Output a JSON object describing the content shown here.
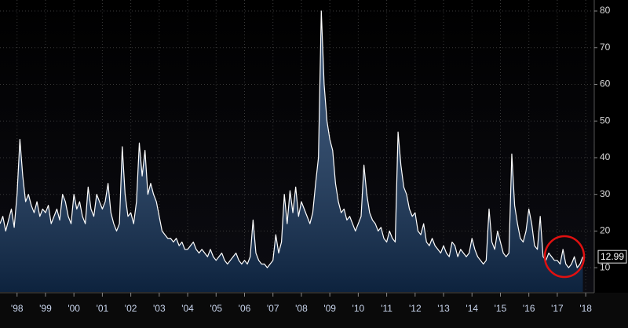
{
  "chart_data": {
    "type": "area",
    "color": "#ffffff",
    "fill_color": "#14355f",
    "grid": true,
    "xlim": [
      1997.4,
      2018.3
    ],
    "ylim": [
      3.4,
      83
    ],
    "yticks": [
      10,
      20,
      30,
      40,
      50,
      60,
      70,
      80
    ],
    "xticks": [
      {
        "value": 1998,
        "label": "'98"
      },
      {
        "value": 1999,
        "label": "'99"
      },
      {
        "value": 2000,
        "label": "'00"
      },
      {
        "value": 2001,
        "label": "'01"
      },
      {
        "value": 2002,
        "label": "'02"
      },
      {
        "value": 2003,
        "label": "'03"
      },
      {
        "value": 2004,
        "label": "'04"
      },
      {
        "value": 2005,
        "label": "'05"
      },
      {
        "value": 2006,
        "label": "'06"
      },
      {
        "value": 2007,
        "label": "'07"
      },
      {
        "value": 2008,
        "label": "'08"
      },
      {
        "value": 2009,
        "label": "'09"
      },
      {
        "value": 2010,
        "label": "'10"
      },
      {
        "value": 2011,
        "label": "'11"
      },
      {
        "value": 2012,
        "label": "'12"
      },
      {
        "value": 2013,
        "label": "'13"
      },
      {
        "value": 2014,
        "label": "'14"
      },
      {
        "value": 2015,
        "label": "'15"
      },
      {
        "value": 2016,
        "label": "'16"
      },
      {
        "value": 2017,
        "label": "'17"
      },
      {
        "value": 2018,
        "label": "'18"
      }
    ],
    "x": [
      1997.4,
      1997.5,
      1997.6,
      1997.7,
      1997.8,
      1997.9,
      1998.0,
      1998.1,
      1998.2,
      1998.3,
      1998.4,
      1998.5,
      1998.6,
      1998.7,
      1998.8,
      1998.9,
      1999.0,
      1999.1,
      1999.2,
      1999.3,
      1999.4,
      1999.5,
      1999.6,
      1999.7,
      1999.8,
      1999.9,
      2000.0,
      2000.1,
      2000.2,
      2000.3,
      2000.4,
      2000.5,
      2000.6,
      2000.7,
      2000.8,
      2000.9,
      2001.0,
      2001.1,
      2001.2,
      2001.3,
      2001.4,
      2001.5,
      2001.6,
      2001.7,
      2001.8,
      2001.9,
      2002.0,
      2002.1,
      2002.2,
      2002.3,
      2002.4,
      2002.5,
      2002.6,
      2002.7,
      2002.8,
      2002.9,
      2003.0,
      2003.1,
      2003.2,
      2003.3,
      2003.4,
      2003.5,
      2003.6,
      2003.7,
      2003.8,
      2003.9,
      2004.0,
      2004.1,
      2004.2,
      2004.3,
      2004.4,
      2004.5,
      2004.6,
      2004.7,
      2004.8,
      2004.9,
      2005.0,
      2005.1,
      2005.2,
      2005.3,
      2005.4,
      2005.5,
      2005.6,
      2005.7,
      2005.8,
      2005.9,
      2006.0,
      2006.1,
      2006.2,
      2006.3,
      2006.4,
      2006.5,
      2006.6,
      2006.7,
      2006.8,
      2006.9,
      2007.0,
      2007.1,
      2007.2,
      2007.3,
      2007.4,
      2007.5,
      2007.6,
      2007.7,
      2007.8,
      2007.9,
      2008.0,
      2008.1,
      2008.2,
      2008.3,
      2008.4,
      2008.5,
      2008.6,
      2008.7,
      2008.8,
      2008.9,
      2009.0,
      2009.1,
      2009.2,
      2009.3,
      2009.4,
      2009.5,
      2009.6,
      2009.7,
      2009.8,
      2009.9,
      2010.0,
      2010.1,
      2010.2,
      2010.3,
      2010.4,
      2010.5,
      2010.6,
      2010.7,
      2010.8,
      2010.9,
      2011.0,
      2011.1,
      2011.2,
      2011.3,
      2011.4,
      2011.5,
      2011.6,
      2011.7,
      2011.8,
      2011.9,
      2012.0,
      2012.1,
      2012.2,
      2012.3,
      2012.4,
      2012.5,
      2012.6,
      2012.7,
      2012.8,
      2012.9,
      2013.0,
      2013.1,
      2013.2,
      2013.3,
      2013.4,
      2013.5,
      2013.6,
      2013.7,
      2013.8,
      2013.9,
      2014.0,
      2014.1,
      2014.2,
      2014.3,
      2014.4,
      2014.5,
      2014.6,
      2014.7,
      2014.8,
      2014.9,
      2015.0,
      2015.1,
      2015.2,
      2015.3,
      2015.4,
      2015.5,
      2015.6,
      2015.7,
      2015.8,
      2015.9,
      2016.0,
      2016.1,
      2016.2,
      2016.3,
      2016.4,
      2016.5,
      2016.6,
      2016.7,
      2016.8,
      2016.9,
      2017.0,
      2017.1,
      2017.2,
      2017.3,
      2017.4,
      2017.5,
      2017.6,
      2017.7,
      2017.8,
      2017.9
    ],
    "values": [
      22,
      24,
      20,
      23,
      26,
      21,
      30,
      45,
      35,
      28,
      30,
      27,
      25,
      28,
      24,
      26,
      25,
      27,
      22,
      24,
      26,
      23,
      30,
      28,
      24,
      22,
      30,
      26,
      28,
      24,
      22,
      32,
      26,
      24,
      30,
      28,
      26,
      28,
      33,
      25,
      22,
      20,
      22,
      43,
      30,
      24,
      25,
      22,
      28,
      44,
      35,
      42,
      30,
      33,
      30,
      28,
      24,
      20,
      19,
      18,
      18,
      17,
      18,
      16,
      17,
      15,
      15,
      16,
      17,
      15,
      14,
      15,
      14,
      13,
      15,
      13,
      12,
      13,
      14,
      12,
      11,
      12,
      13,
      14,
      12,
      11,
      12,
      11,
      13,
      23,
      14,
      12,
      11,
      11,
      10,
      11,
      12,
      19,
      14,
      17,
      30,
      22,
      31,
      25,
      32,
      24,
      28,
      26,
      24,
      22,
      25,
      33,
      40,
      80,
      60,
      50,
      45,
      42,
      33,
      28,
      25,
      26,
      23,
      24,
      22,
      20,
      22,
      24,
      38,
      30,
      25,
      23,
      22,
      20,
      21,
      18,
      17,
      20,
      18,
      17,
      47,
      38,
      32,
      30,
      26,
      24,
      25,
      20,
      19,
      22,
      17,
      16,
      18,
      16,
      15,
      14,
      16,
      14,
      13,
      17,
      16,
      13,
      15,
      14,
      13,
      14,
      18,
      15,
      13,
      12,
      11,
      12,
      26,
      17,
      15,
      20,
      17,
      14,
      13,
      14,
      41,
      27,
      22,
      18,
      17,
      20,
      26,
      22,
      16,
      15,
      24,
      13,
      12,
      14,
      13,
      12,
      12,
      11,
      15,
      11,
      10,
      11,
      13,
      10,
      11,
      12.99
    ]
  }
}
